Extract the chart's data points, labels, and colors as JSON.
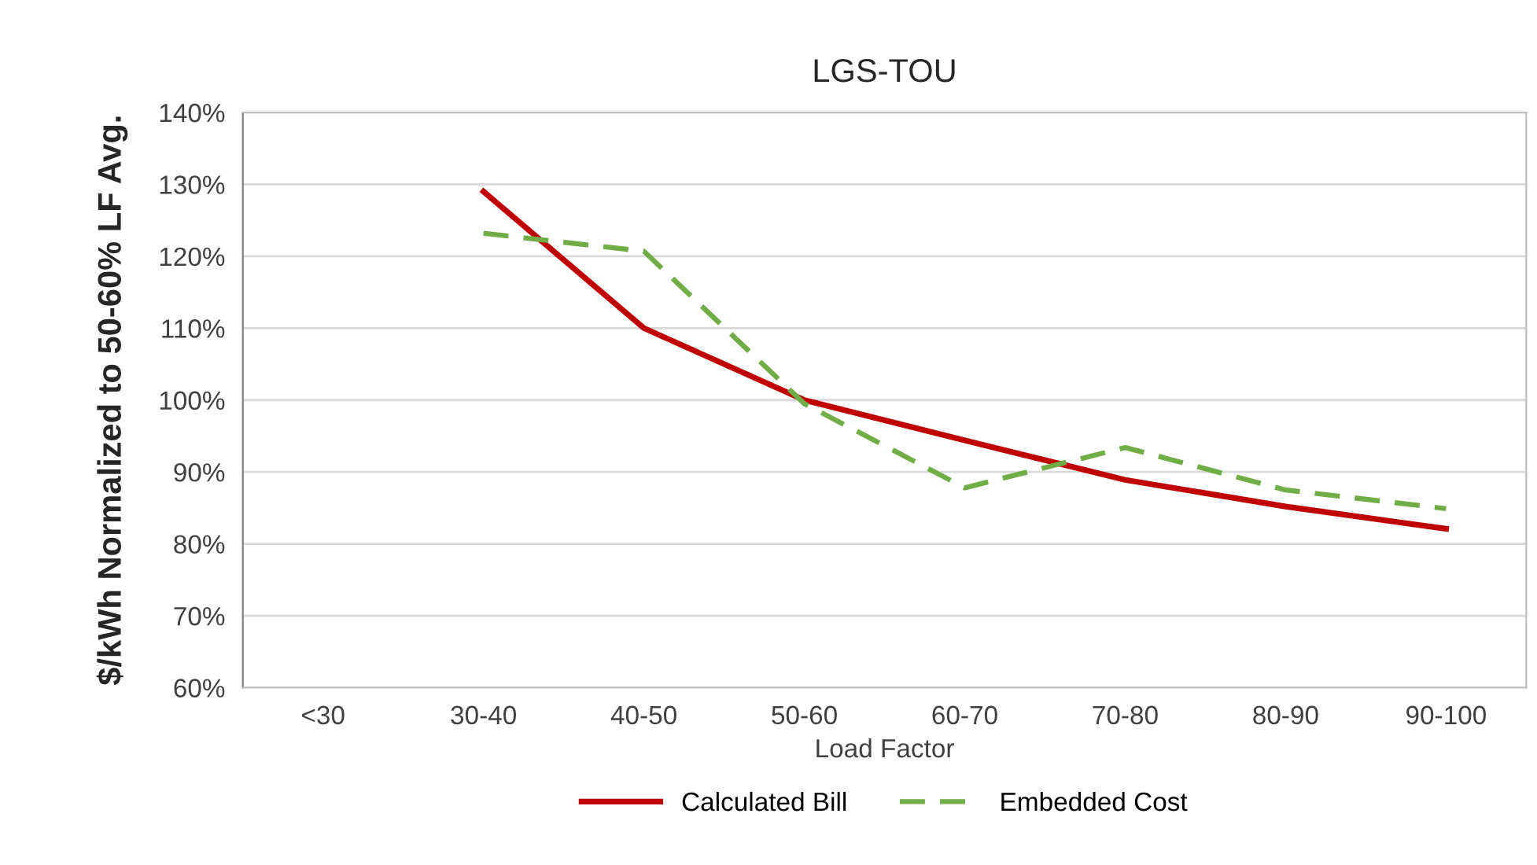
{
  "chart_data": {
    "type": "line",
    "title": "LGS-TOU",
    "xlabel": "Load Factor",
    "ylabel": "$/kWh Normalized to 50-60% LF Avg.",
    "categories": [
      "<30",
      "30-40",
      "40-50",
      "50-60",
      "60-70",
      "70-80",
      "80-90",
      "90-100"
    ],
    "series": [
      {
        "name": "Calculated Bill",
        "color": "#c00000",
        "line_style": "solid",
        "values": [
          null,
          129,
          110,
          100,
          94.4,
          88.9,
          85.2,
          82.1
        ]
      },
      {
        "name": "Embedded Cost",
        "color": "#70ad47",
        "line_style": "dashed",
        "values": [
          null,
          123.2,
          120.7,
          99.5,
          87.8,
          93.4,
          87.5,
          84.9
        ]
      }
    ],
    "ylim": [
      60,
      140
    ],
    "yticks": [
      {
        "value": 60,
        "label": "60%"
      },
      {
        "value": 70,
        "label": "70%"
      },
      {
        "value": 80,
        "label": "80%"
      },
      {
        "value": 90,
        "label": "90%"
      },
      {
        "value": 100,
        "label": "100%"
      },
      {
        "value": 110,
        "label": "110%"
      },
      {
        "value": 120,
        "label": "120%"
      },
      {
        "value": 130,
        "label": "130%"
      },
      {
        "value": 140,
        "label": "140%"
      }
    ],
    "grid": "y",
    "legend": "bottom",
    "marker": "none"
  }
}
